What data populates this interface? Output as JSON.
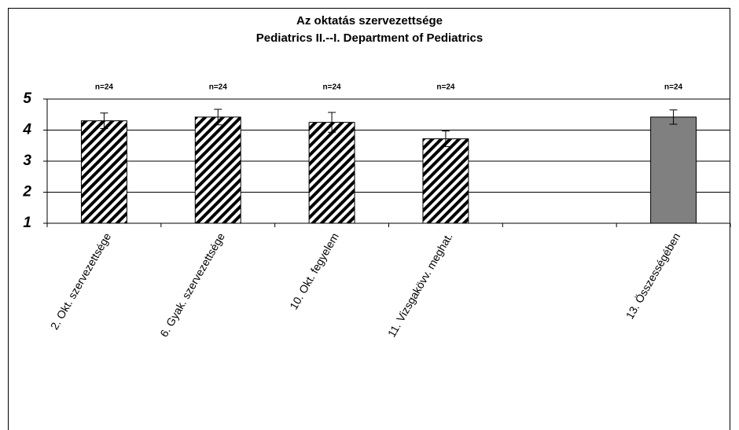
{
  "chart_data": {
    "type": "bar",
    "title": "Az oktatás szervezettsége",
    "subtitle": "Pediatrics II.--I. Department of Pediatrics",
    "categories": [
      "2. Okt. szervezettsége",
      "6. Gyak. szervezettsége",
      "10. Okt. fegyelem",
      "11. Vizsgakövv. meghat.",
      null,
      "13. Összességében"
    ],
    "values": [
      4.3,
      4.42,
      4.25,
      3.72,
      null,
      4.42
    ],
    "errors": [
      0.25,
      0.25,
      0.32,
      0.25,
      null,
      0.23
    ],
    "annotations": [
      "n=24",
      "n=24",
      "n=24",
      "n=24",
      null,
      "n=24"
    ],
    "colors": [
      "#000000",
      "#000000",
      "#000000",
      "#000000",
      null,
      "#808080"
    ],
    "hatched": [
      true,
      true,
      true,
      true,
      null,
      false
    ],
    "ylim": [
      1,
      5
    ],
    "yticks": [
      1,
      2,
      3,
      4,
      5
    ],
    "grid": true
  }
}
